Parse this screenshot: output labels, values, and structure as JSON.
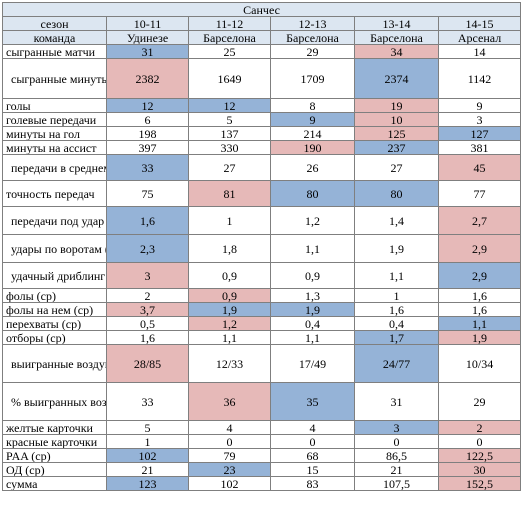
{
  "title": "Санчес",
  "header": {
    "label": "сезон",
    "seasons": [
      "10-11",
      "11-12",
      "12-13",
      "13-14",
      "14-15"
    ]
  },
  "team_row": {
    "label": "команда",
    "values": [
      "Удинезе",
      "Барселона",
      "Барселона",
      "Барселона",
      "Арсенал"
    ]
  },
  "rows": [
    {
      "label": "сыгранные матчи",
      "values": [
        "31",
        "25",
        "29",
        "34",
        "14"
      ],
      "hl": [
        "blue",
        "",
        "",
        "red",
        ""
      ]
    },
    {
      "label": "сыгранные минуты",
      "values": [
        "2382",
        "1649",
        "1709",
        "2374",
        "1142"
      ],
      "hl": [
        "red",
        "",
        "",
        "blue",
        ""
      ]
    },
    {
      "label": "голы",
      "values": [
        "12",
        "12",
        "8",
        "19",
        "9"
      ],
      "hl": [
        "blue",
        "blue",
        "",
        "red",
        ""
      ]
    },
    {
      "label": "голевые передачи",
      "values": [
        "6",
        "5",
        "9",
        "10",
        "3"
      ],
      "hl": [
        "",
        "",
        "blue",
        "red",
        ""
      ]
    },
    {
      "label": "минуты на гол",
      "values": [
        "198",
        "137",
        "214",
        "125",
        "127"
      ],
      "hl": [
        "",
        "",
        "",
        "red",
        "blue"
      ]
    },
    {
      "label": "минуты на ассист",
      "values": [
        "397",
        "330",
        "190",
        "237",
        "381"
      ],
      "hl": [
        "",
        "",
        "red",
        "blue",
        ""
      ]
    },
    {
      "label": "передачи в среднем за матч",
      "values": [
        "33",
        "27",
        "26",
        "27",
        "45"
      ],
      "hl": [
        "blue",
        "",
        "",
        "",
        "red"
      ]
    },
    {
      "label": "точность передач",
      "values": [
        "75",
        "81",
        "80",
        "80",
        "77"
      ],
      "hl": [
        "",
        "red",
        "blue",
        "blue",
        ""
      ]
    },
    {
      "label": "передачи под удар (ср*)",
      "values": [
        "1,6",
        "1",
        "1,2",
        "1,4",
        "2,7"
      ],
      "hl": [
        "blue",
        "",
        "",
        "",
        "red"
      ]
    },
    {
      "label": "удары по воротам (ср)",
      "values": [
        "2,3",
        "1,8",
        "1,1",
        "1,9",
        "2,9"
      ],
      "hl": [
        "blue",
        "",
        "",
        "",
        "red"
      ]
    },
    {
      "label": "удачный дриблинг (ср)",
      "values": [
        "3",
        "0,9",
        "0,9",
        "1,1",
        "2,9"
      ],
      "hl": [
        "red",
        "",
        "",
        "",
        "blue"
      ]
    },
    {
      "label": "фолы (ср)",
      "values": [
        "2",
        "0,9",
        "1,3",
        "1",
        "1,6"
      ],
      "hl": [
        "",
        "red",
        "",
        "",
        ""
      ]
    },
    {
      "label": "фолы на нем (ср)",
      "values": [
        "3,7",
        "1,9",
        "1,9",
        "1,6",
        "1,6"
      ],
      "hl": [
        "red",
        "blue",
        "blue",
        "",
        ""
      ]
    },
    {
      "label": "перехваты (ср)",
      "values": [
        "0,5",
        "1,2",
        "0,4",
        "0,4",
        "1,1"
      ],
      "hl": [
        "",
        "red",
        "",
        "",
        "blue"
      ]
    },
    {
      "label": "отборы (ср)",
      "values": [
        "1,6",
        "1,1",
        "1,1",
        "1,7",
        "1,9"
      ],
      "hl": [
        "",
        "",
        "",
        "blue",
        "red"
      ]
    },
    {
      "label": "выигранные воздушные единоборства",
      "values": [
        "28/85",
        "12/33",
        "17/49",
        "24/77",
        "10/34"
      ],
      "hl": [
        "red",
        "",
        "",
        "blue",
        ""
      ]
    },
    {
      "label": "% выигранных воздушных единоборств",
      "values": [
        "33",
        "36",
        "35",
        "31",
        "29"
      ],
      "hl": [
        "",
        "red",
        "blue",
        "",
        ""
      ]
    },
    {
      "label": "желтые карточки",
      "values": [
        "5",
        "4",
        "4",
        "3",
        "2"
      ],
      "hl": [
        "",
        "",
        "",
        "blue",
        "red"
      ]
    },
    {
      "label": "красные карточки",
      "values": [
        "1",
        "0",
        "0",
        "0",
        "0"
      ],
      "hl": [
        "",
        "",
        "",
        "",
        ""
      ]
    },
    {
      "label": "PAA (ср)",
      "values": [
        "102",
        "79",
        "68",
        "86,5",
        "122,5"
      ],
      "hl": [
        "blue",
        "",
        "",
        "",
        "red"
      ]
    },
    {
      "label": "ОД (ср)",
      "values": [
        "21",
        "23",
        "15",
        "21",
        "30"
      ],
      "hl": [
        "",
        "blue",
        "",
        "",
        "red"
      ]
    },
    {
      "label": "сумма",
      "values": [
        "123",
        "102",
        "83",
        "107,5",
        "152,5"
      ],
      "hl": [
        "blue",
        "",
        "",
        "",
        "red"
      ]
    }
  ],
  "colors": {
    "red": "#e6b9b8",
    "blue": "#95b3d7",
    "header_bg": "#dce6f1"
  }
}
